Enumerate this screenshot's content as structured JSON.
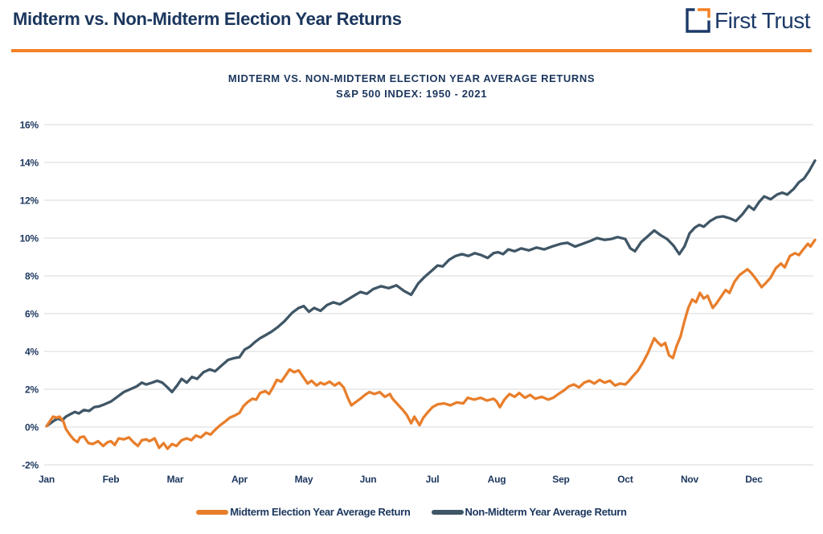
{
  "header": {
    "title": "Midterm vs. Non-Midterm Election Year Returns",
    "logo_text": "First Trust"
  },
  "colors": {
    "navy_text": "#1b365d",
    "orange_accent": "#f58025",
    "midterm_line": "#e87e2b",
    "non_midterm_line": "#3f5666",
    "gridline": "#d9d9d9"
  },
  "chart_data": {
    "type": "line",
    "title": "MIDTERM VS. NON-MIDTERM ELECTION YEAR AVERAGE RETURNS",
    "subtitle": "S&P 500 INDEX: 1950 - 2021",
    "grid": "horizontal",
    "legend_position": "bottom",
    "x_unit": "months, 0 = Jan 1 through 12 = Dec 31",
    "x_tick_labels": [
      "Jan",
      "Feb",
      "Mar",
      "Apr",
      "May",
      "Jun",
      "Jul",
      "Aug",
      "Sep",
      "Oct",
      "Nov",
      "Dec"
    ],
    "y_ticks": [
      16,
      14,
      12,
      10,
      8,
      6,
      4,
      2,
      0,
      -2
    ],
    "y_tick_labels": [
      "16%",
      "14%",
      "12%",
      "10%",
      "8%",
      "6%",
      "4%",
      "2%",
      "0%",
      "-2%"
    ],
    "ylim": [
      -2,
      16
    ],
    "series": [
      {
        "name": "Non-Midterm Year Average Return",
        "color": "#3f5666",
        "points": [
          [
            0,
            0.05
          ],
          [
            0.06,
            0.2
          ],
          [
            0.12,
            0.35
          ],
          [
            0.18,
            0.45
          ],
          [
            0.24,
            0.35
          ],
          [
            0.3,
            0.55
          ],
          [
            0.38,
            0.7
          ],
          [
            0.44,
            0.8
          ],
          [
            0.5,
            0.72
          ],
          [
            0.58,
            0.9
          ],
          [
            0.66,
            0.85
          ],
          [
            0.74,
            1.05
          ],
          [
            0.82,
            1.1
          ],
          [
            0.9,
            1.2
          ],
          [
            1,
            1.35
          ],
          [
            1.1,
            1.6
          ],
          [
            1.2,
            1.85
          ],
          [
            1.3,
            2
          ],
          [
            1.4,
            2.15
          ],
          [
            1.48,
            2.35
          ],
          [
            1.55,
            2.25
          ],
          [
            1.64,
            2.35
          ],
          [
            1.72,
            2.45
          ],
          [
            1.8,
            2.35
          ],
          [
            1.88,
            2.1
          ],
          [
            1.95,
            1.85
          ],
          [
            2.03,
            2.2
          ],
          [
            2.1,
            2.55
          ],
          [
            2.18,
            2.35
          ],
          [
            2.26,
            2.65
          ],
          [
            2.34,
            2.55
          ],
          [
            2.44,
            2.9
          ],
          [
            2.54,
            3.05
          ],
          [
            2.62,
            2.95
          ],
          [
            2.72,
            3.25
          ],
          [
            2.82,
            3.55
          ],
          [
            2.92,
            3.65
          ],
          [
            3,
            3.7
          ],
          [
            3.08,
            4.1
          ],
          [
            3.16,
            4.25
          ],
          [
            3.24,
            4.5
          ],
          [
            3.32,
            4.7
          ],
          [
            3.4,
            4.85
          ],
          [
            3.5,
            5.05
          ],
          [
            3.6,
            5.3
          ],
          [
            3.7,
            5.6
          ],
          [
            3.82,
            6.05
          ],
          [
            3.92,
            6.3
          ],
          [
            4,
            6.4
          ],
          [
            4.08,
            6.1
          ],
          [
            4.16,
            6.3
          ],
          [
            4.26,
            6.15
          ],
          [
            4.36,
            6.45
          ],
          [
            4.46,
            6.6
          ],
          [
            4.56,
            6.5
          ],
          [
            4.66,
            6.7
          ],
          [
            4.78,
            6.95
          ],
          [
            4.88,
            7.15
          ],
          [
            4.98,
            7.05
          ],
          [
            5.08,
            7.3
          ],
          [
            5.2,
            7.45
          ],
          [
            5.32,
            7.35
          ],
          [
            5.44,
            7.5
          ],
          [
            5.56,
            7.2
          ],
          [
            5.67,
            7
          ],
          [
            5.78,
            7.6
          ],
          [
            5.88,
            7.95
          ],
          [
            6,
            8.3
          ],
          [
            6.08,
            8.55
          ],
          [
            6.16,
            8.5
          ],
          [
            6.26,
            8.85
          ],
          [
            6.36,
            9.05
          ],
          [
            6.46,
            9.15
          ],
          [
            6.56,
            9.05
          ],
          [
            6.66,
            9.2
          ],
          [
            6.76,
            9.1
          ],
          [
            6.86,
            8.95
          ],
          [
            6.95,
            9.2
          ],
          [
            7.02,
            9.25
          ],
          [
            7.1,
            9.15
          ],
          [
            7.18,
            9.4
          ],
          [
            7.28,
            9.3
          ],
          [
            7.38,
            9.45
          ],
          [
            7.5,
            9.35
          ],
          [
            7.62,
            9.5
          ],
          [
            7.74,
            9.4
          ],
          [
            7.86,
            9.55
          ],
          [
            8,
            9.7
          ],
          [
            8.1,
            9.75
          ],
          [
            8.22,
            9.55
          ],
          [
            8.34,
            9.7
          ],
          [
            8.46,
            9.85
          ],
          [
            8.56,
            10
          ],
          [
            8.68,
            9.9
          ],
          [
            8.78,
            9.95
          ],
          [
            8.88,
            10.05
          ],
          [
            9,
            9.95
          ],
          [
            9.08,
            9.45
          ],
          [
            9.15,
            9.3
          ],
          [
            9.25,
            9.8
          ],
          [
            9.35,
            10.1
          ],
          [
            9.45,
            10.4
          ],
          [
            9.55,
            10.15
          ],
          [
            9.65,
            9.95
          ],
          [
            9.75,
            9.6
          ],
          [
            9.84,
            9.15
          ],
          [
            9.92,
            9.55
          ],
          [
            10,
            10.25
          ],
          [
            10.08,
            10.55
          ],
          [
            10.15,
            10.7
          ],
          [
            10.22,
            10.6
          ],
          [
            10.32,
            10.9
          ],
          [
            10.42,
            11.1
          ],
          [
            10.52,
            11.15
          ],
          [
            10.62,
            11.05
          ],
          [
            10.72,
            10.9
          ],
          [
            10.82,
            11.25
          ],
          [
            10.92,
            11.7
          ],
          [
            11,
            11.5
          ],
          [
            11.08,
            11.9
          ],
          [
            11.16,
            12.2
          ],
          [
            11.26,
            12.05
          ],
          [
            11.36,
            12.3
          ],
          [
            11.44,
            12.4
          ],
          [
            11.52,
            12.3
          ],
          [
            11.62,
            12.6
          ],
          [
            11.7,
            12.95
          ],
          [
            11.78,
            13.15
          ],
          [
            11.86,
            13.55
          ],
          [
            11.95,
            14.1
          ]
        ]
      },
      {
        "name": "Midterm Election Year Average Return",
        "color": "#e87e2b",
        "points": [
          [
            0,
            0.05
          ],
          [
            0.05,
            0.3
          ],
          [
            0.1,
            0.55
          ],
          [
            0.16,
            0.5
          ],
          [
            0.2,
            0.55
          ],
          [
            0.26,
            0.3
          ],
          [
            0.3,
            -0.1
          ],
          [
            0.36,
            -0.4
          ],
          [
            0.42,
            -0.65
          ],
          [
            0.48,
            -0.8
          ],
          [
            0.52,
            -0.55
          ],
          [
            0.58,
            -0.5
          ],
          [
            0.65,
            -0.85
          ],
          [
            0.72,
            -0.9
          ],
          [
            0.8,
            -0.75
          ],
          [
            0.88,
            -1
          ],
          [
            0.95,
            -0.8
          ],
          [
            1,
            -0.75
          ],
          [
            1.06,
            -0.95
          ],
          [
            1.12,
            -0.6
          ],
          [
            1.2,
            -0.65
          ],
          [
            1.28,
            -0.55
          ],
          [
            1.35,
            -0.8
          ],
          [
            1.42,
            -1
          ],
          [
            1.48,
            -0.7
          ],
          [
            1.55,
            -0.65
          ],
          [
            1.6,
            -0.75
          ],
          [
            1.68,
            -0.6
          ],
          [
            1.75,
            -1.1
          ],
          [
            1.82,
            -0.85
          ],
          [
            1.88,
            -1.15
          ],
          [
            1.95,
            -0.9
          ],
          [
            2.02,
            -1
          ],
          [
            2.1,
            -0.7
          ],
          [
            2.18,
            -0.6
          ],
          [
            2.25,
            -0.7
          ],
          [
            2.32,
            -0.45
          ],
          [
            2.4,
            -0.55
          ],
          [
            2.48,
            -0.3
          ],
          [
            2.55,
            -0.4
          ],
          [
            2.62,
            -0.15
          ],
          [
            2.7,
            0.1
          ],
          [
            2.78,
            0.3
          ],
          [
            2.85,
            0.5
          ],
          [
            2.92,
            0.6
          ],
          [
            3,
            0.75
          ],
          [
            3.06,
            1.1
          ],
          [
            3.12,
            1.3
          ],
          [
            3.2,
            1.5
          ],
          [
            3.26,
            1.45
          ],
          [
            3.32,
            1.8
          ],
          [
            3.4,
            1.9
          ],
          [
            3.46,
            1.75
          ],
          [
            3.52,
            2.1
          ],
          [
            3.58,
            2.5
          ],
          [
            3.65,
            2.4
          ],
          [
            3.72,
            2.75
          ],
          [
            3.78,
            3.05
          ],
          [
            3.85,
            2.9
          ],
          [
            3.92,
            3
          ],
          [
            4,
            2.6
          ],
          [
            4.06,
            2.3
          ],
          [
            4.12,
            2.45
          ],
          [
            4.2,
            2.2
          ],
          [
            4.26,
            2.35
          ],
          [
            4.32,
            2.25
          ],
          [
            4.4,
            2.4
          ],
          [
            4.48,
            2.2
          ],
          [
            4.55,
            2.35
          ],
          [
            4.62,
            2.1
          ],
          [
            4.69,
            1.5
          ],
          [
            4.74,
            1.15
          ],
          [
            4.8,
            1.3
          ],
          [
            4.88,
            1.5
          ],
          [
            4.95,
            1.7
          ],
          [
            5.02,
            1.85
          ],
          [
            5.1,
            1.75
          ],
          [
            5.18,
            1.85
          ],
          [
            5.26,
            1.6
          ],
          [
            5.34,
            1.75
          ],
          [
            5.38,
            1.5
          ],
          [
            5.46,
            1.2
          ],
          [
            5.54,
            0.9
          ],
          [
            5.6,
            0.65
          ],
          [
            5.67,
            0.2
          ],
          [
            5.72,
            0.55
          ],
          [
            5.8,
            0.1
          ],
          [
            5.86,
            0.5
          ],
          [
            5.92,
            0.75
          ],
          [
            6,
            1.05
          ],
          [
            6.08,
            1.2
          ],
          [
            6.18,
            1.25
          ],
          [
            6.28,
            1.15
          ],
          [
            6.38,
            1.3
          ],
          [
            6.48,
            1.25
          ],
          [
            6.55,
            1.55
          ],
          [
            6.65,
            1.45
          ],
          [
            6.75,
            1.55
          ],
          [
            6.85,
            1.4
          ],
          [
            6.95,
            1.5
          ],
          [
            7,
            1.35
          ],
          [
            7.05,
            1.05
          ],
          [
            7.12,
            1.45
          ],
          [
            7.2,
            1.75
          ],
          [
            7.28,
            1.6
          ],
          [
            7.35,
            1.8
          ],
          [
            7.44,
            1.55
          ],
          [
            7.52,
            1.7
          ],
          [
            7.6,
            1.5
          ],
          [
            7.7,
            1.6
          ],
          [
            7.8,
            1.45
          ],
          [
            7.88,
            1.55
          ],
          [
            7.96,
            1.75
          ],
          [
            8.05,
            1.95
          ],
          [
            8.12,
            2.15
          ],
          [
            8.2,
            2.25
          ],
          [
            8.28,
            2.1
          ],
          [
            8.36,
            2.35
          ],
          [
            8.44,
            2.45
          ],
          [
            8.52,
            2.3
          ],
          [
            8.6,
            2.5
          ],
          [
            8.68,
            2.35
          ],
          [
            8.76,
            2.45
          ],
          [
            8.84,
            2.2
          ],
          [
            8.92,
            2.3
          ],
          [
            9,
            2.25
          ],
          [
            9.06,
            2.45
          ],
          [
            9.12,
            2.7
          ],
          [
            9.2,
            3
          ],
          [
            9.28,
            3.45
          ],
          [
            9.35,
            3.9
          ],
          [
            9.4,
            4.3
          ],
          [
            9.45,
            4.7
          ],
          [
            9.5,
            4.5
          ],
          [
            9.56,
            4.3
          ],
          [
            9.62,
            4.45
          ],
          [
            9.68,
            3.8
          ],
          [
            9.74,
            3.65
          ],
          [
            9.8,
            4.3
          ],
          [
            9.86,
            4.8
          ],
          [
            9.92,
            5.6
          ],
          [
            9.98,
            6.3
          ],
          [
            10.04,
            6.75
          ],
          [
            10.1,
            6.6
          ],
          [
            10.16,
            7.1
          ],
          [
            10.22,
            6.8
          ],
          [
            10.28,
            6.95
          ],
          [
            10.36,
            6.3
          ],
          [
            10.42,
            6.55
          ],
          [
            10.48,
            6.85
          ],
          [
            10.56,
            7.25
          ],
          [
            10.62,
            7.1
          ],
          [
            10.7,
            7.7
          ],
          [
            10.78,
            8.05
          ],
          [
            10.84,
            8.2
          ],
          [
            10.9,
            8.35
          ],
          [
            10.96,
            8.15
          ],
          [
            11.04,
            7.8
          ],
          [
            11.12,
            7.4
          ],
          [
            11.18,
            7.6
          ],
          [
            11.26,
            7.9
          ],
          [
            11.34,
            8.4
          ],
          [
            11.42,
            8.65
          ],
          [
            11.48,
            8.45
          ],
          [
            11.56,
            9.05
          ],
          [
            11.64,
            9.2
          ],
          [
            11.7,
            9.1
          ],
          [
            11.78,
            9.45
          ],
          [
            11.84,
            9.7
          ],
          [
            11.88,
            9.55
          ],
          [
            11.95,
            9.9
          ]
        ]
      }
    ]
  }
}
